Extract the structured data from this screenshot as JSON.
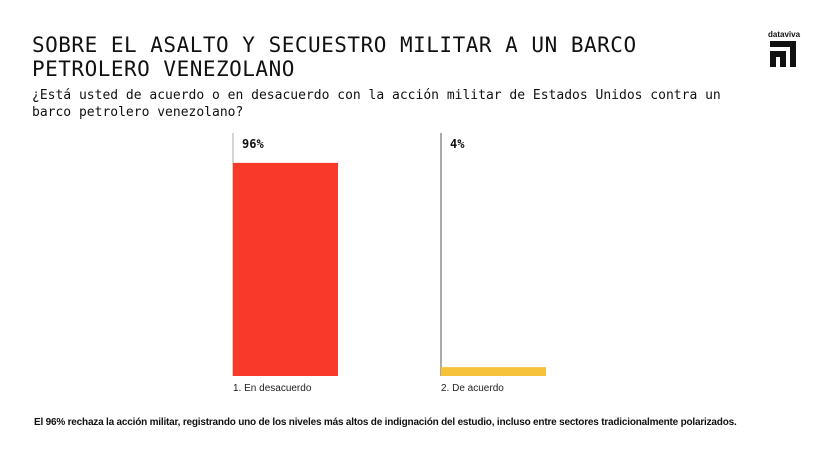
{
  "title": "SOBRE EL ASALTO Y SECUESTRO MILITAR A UN BARCO PETROLERO VENEZOLANO",
  "subtitle": "¿Está usted de acuerdo o en desacuerdo con la acción militar de Estados Unidos contra un barco petrolero venezolano?",
  "logo_text": "dataviva",
  "footer": "El 96% rechaza la acción militar, registrando uno de los niveles más altos de indignación del estudio, incluso entre sectores tradicionalmente polarizados.",
  "chart_data": {
    "type": "bar",
    "categories": [
      "1. En desacuerdo",
      "2. De acuerdo"
    ],
    "values": [
      96,
      4
    ],
    "value_labels": [
      "96%",
      "4%"
    ],
    "colors": [
      "#f93a28",
      "#f5c23a"
    ],
    "ylim": [
      0,
      100
    ]
  }
}
